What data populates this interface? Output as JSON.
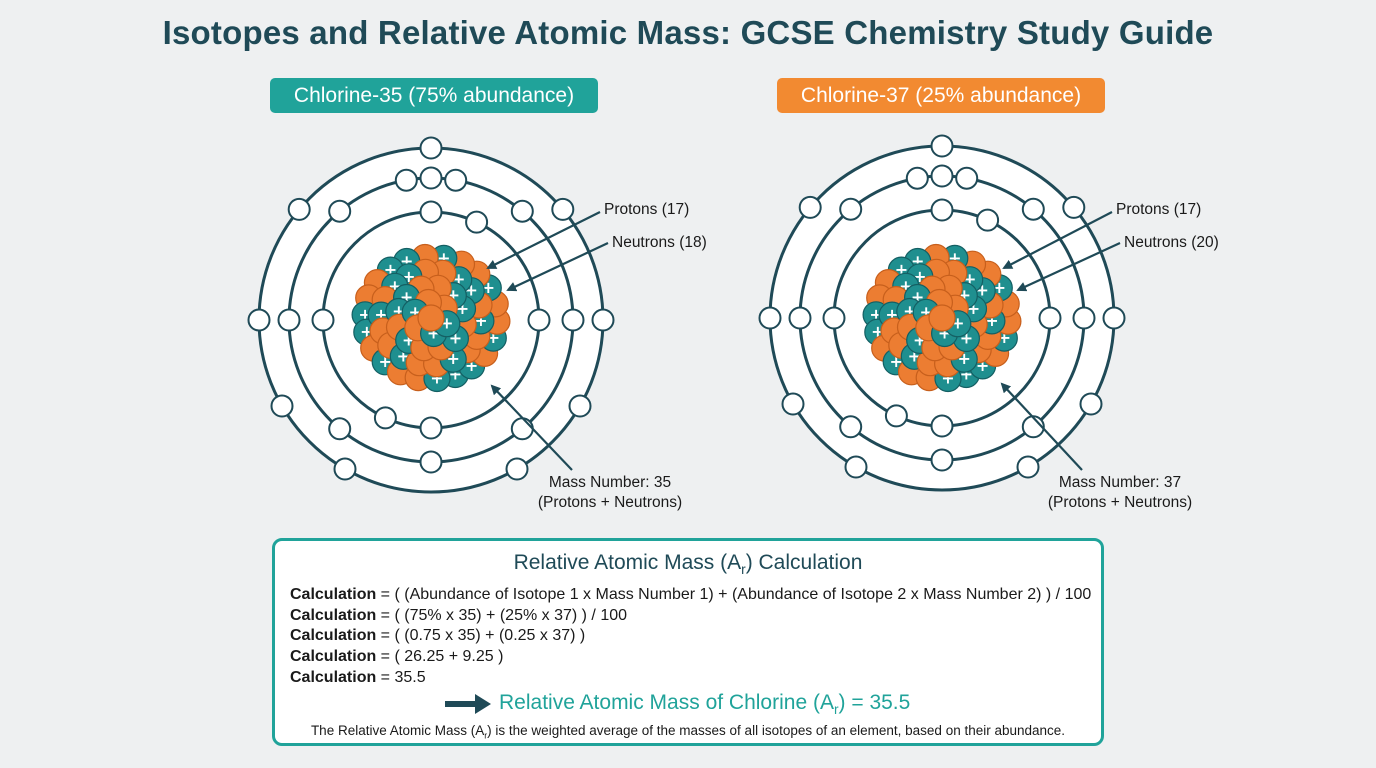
{
  "title": "Isotopes and Relative Atomic Mass: GCSE Chemistry Study Guide",
  "colors": {
    "teal": "#20a39a",
    "orange": "#f28a31",
    "dark_teal": "#1f4a57",
    "proton": "#1f8f8f",
    "neutron": "#ec7d32"
  },
  "isotopes": [
    {
      "label": "Chlorine-35 (75% abundance)",
      "protons_label": "Protons (17)",
      "neutrons_label": "Neutrons (18)",
      "mass_line1": "Mass Number: 35",
      "mass_line2": "(Protons + Neutrons)"
    },
    {
      "label": "Chlorine-37 (25% abundance)",
      "protons_label": "Protons (17)",
      "neutrons_label": "Neutrons (20)",
      "mass_line1": "Mass Number: 37",
      "mass_line2": "(Protons + Neutrons)"
    }
  ],
  "calculation": {
    "title_pre": "Relative Atomic Mass (A",
    "title_sub": "r",
    "title_post": ") Calculation",
    "line_label": "Calculation",
    "lines": [
      " = ( (Abundance of Isotope 1 x Mass Number 1) + (Abundance of Isotope 2 x Mass Number 2) ) / 100",
      " = ( (75% x 35) + (25% x 37) ) / 100",
      " = ( (0.75 x 35) + (0.25 x 37) )",
      " = ( 26.25 + 9.25 )",
      " = 35.5"
    ],
    "result_pre": "Relative Atomic Mass of Chlorine (A",
    "result_sub": "r",
    "result_post": ") = 35.5",
    "footnote_pre": "The Relative Atomic Mass (A",
    "footnote_sub": "r",
    "footnote_post": ") is the weighted average of the masses of all isotopes of an element, based on their abundance."
  }
}
